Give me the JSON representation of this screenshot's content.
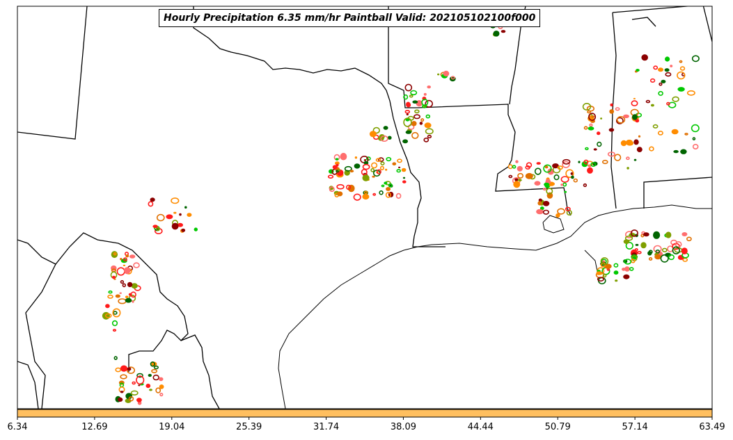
{
  "title": "Hourly Precipitation 6.35 mm/hr Paintball Valid: 202105102100f000",
  "colorbar": {
    "fill_color": "#ffbf5f",
    "ticks": [
      "6.34",
      "12.69",
      "19.04",
      "25.39",
      "31.74",
      "38.09",
      "44.44",
      "50.79",
      "57.14",
      "63.49"
    ]
  },
  "member_colors": [
    "#00c800",
    "#006400",
    "#7f9f00",
    "#ff8c00",
    "#ff1a1a",
    "#8b0000",
    "#ff6e6e",
    "#e07000"
  ]
}
